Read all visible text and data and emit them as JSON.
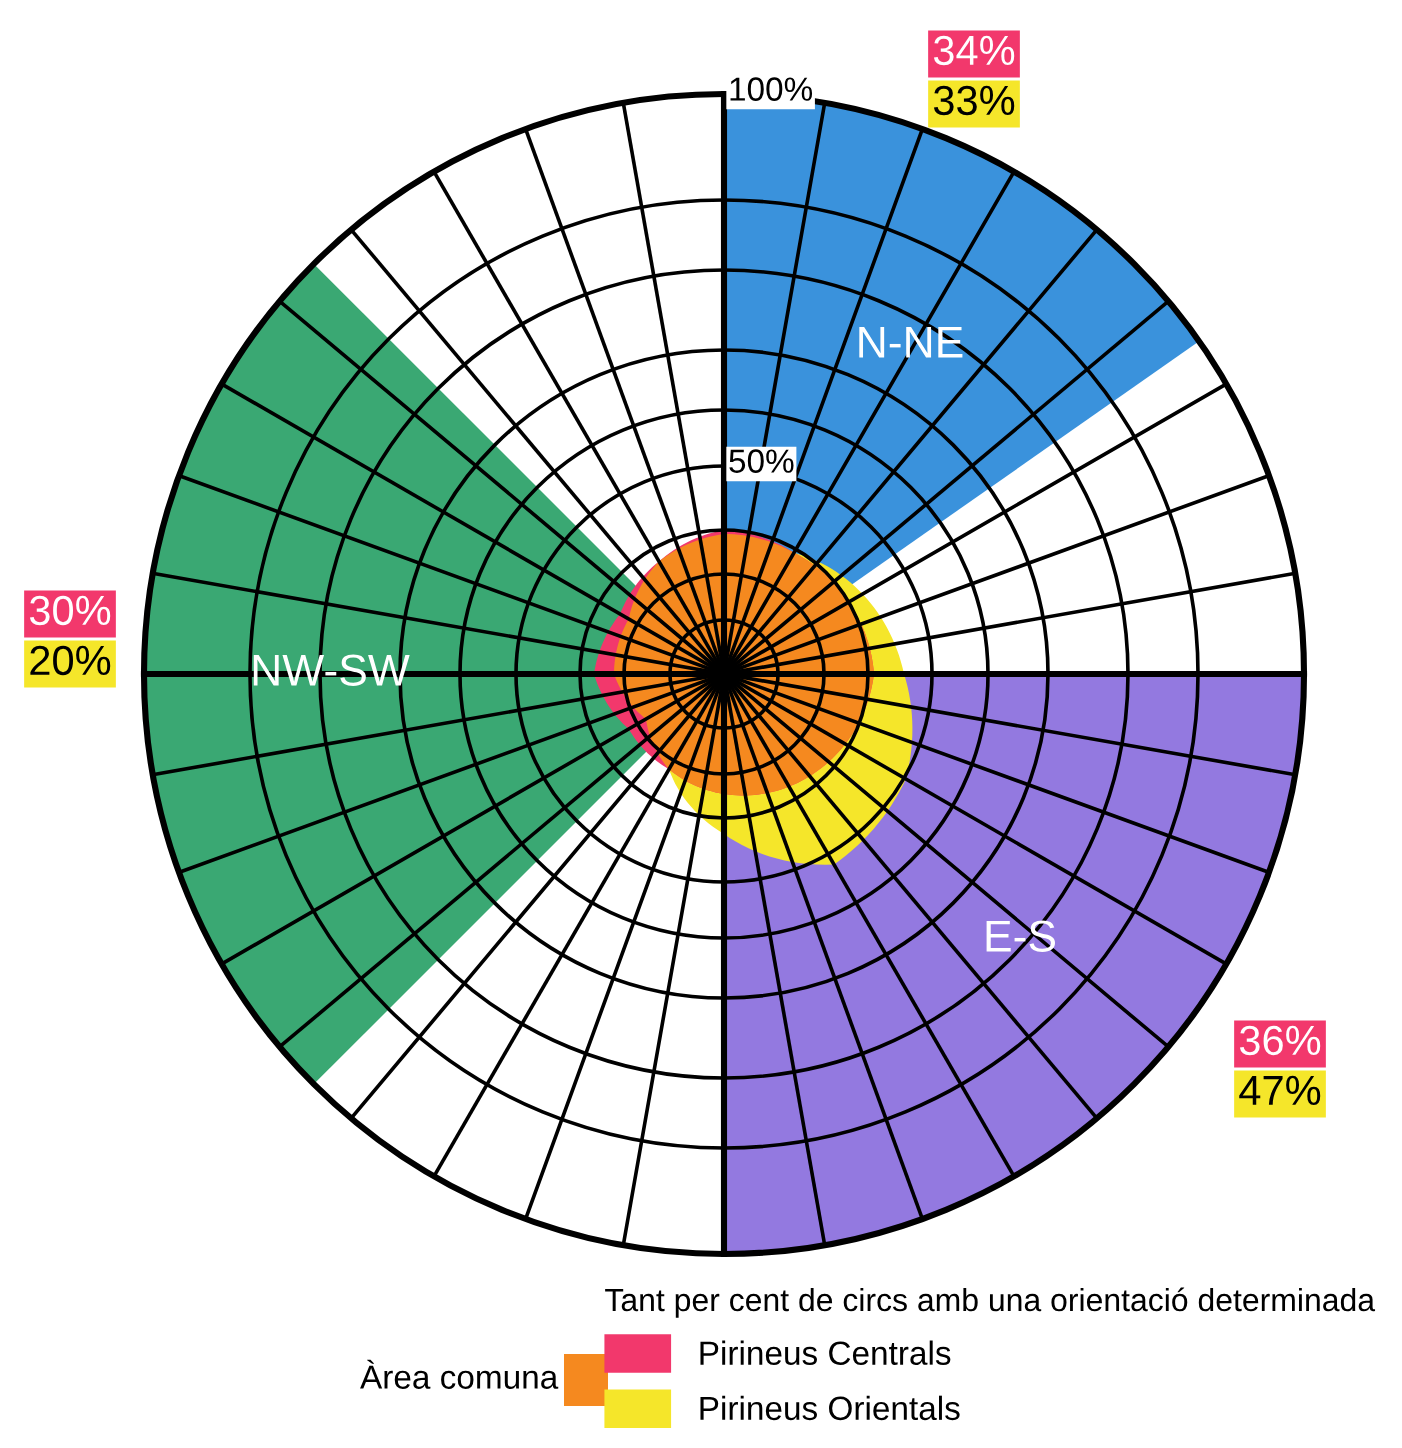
{
  "chart_data": {
    "type": "other",
    "categories": [
      "N-NE",
      "E-S",
      "NW-SW"
    ],
    "colors": [
      "#3a92dc",
      "#9379e0",
      "#3aa873"
    ],
    "series": [
      {
        "name": "Pirineus Centrals",
        "color": "#f2386c",
        "values": [
          34,
          36,
          30
        ],
        "value_labels": [
          "34%",
          "36%",
          "30%"
        ]
      },
      {
        "name": "Pirineus Orientals",
        "color": "#f5e62a",
        "values": [
          33,
          47,
          20
        ],
        "value_labels": [
          "33%",
          "47%",
          "20%"
        ]
      }
    ],
    "legend_title": "Tant per cent de circs amb una orientació determinada",
    "legend": "bottom right",
    "annotations": [
      "100%",
      "50%",
      "Àrea comuna"
    ]
  }
}
